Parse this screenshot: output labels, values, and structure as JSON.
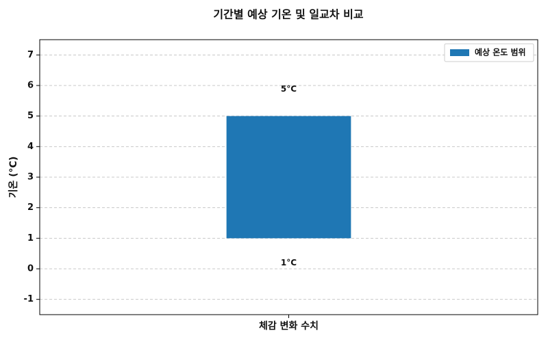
{
  "chart_data": {
    "type": "floating-bar",
    "title": "기간별 예상 기온 및 일교차 비교",
    "y_label": "기온 (°C)",
    "categories": [
      "체감 변화 수치"
    ],
    "series": [
      {
        "name": "예상 온도 범위",
        "color": "#1f77b4",
        "low": [
          1
        ],
        "high": [
          5
        ],
        "low_labels": [
          "1°C"
        ],
        "high_labels": [
          "5°C"
        ]
      }
    ],
    "ylim": [
      -1.5,
      7.5
    ],
    "yticks": [
      -1,
      0,
      1,
      2,
      3,
      4,
      5,
      6,
      7
    ],
    "grid": true,
    "legend": "upper-right"
  }
}
